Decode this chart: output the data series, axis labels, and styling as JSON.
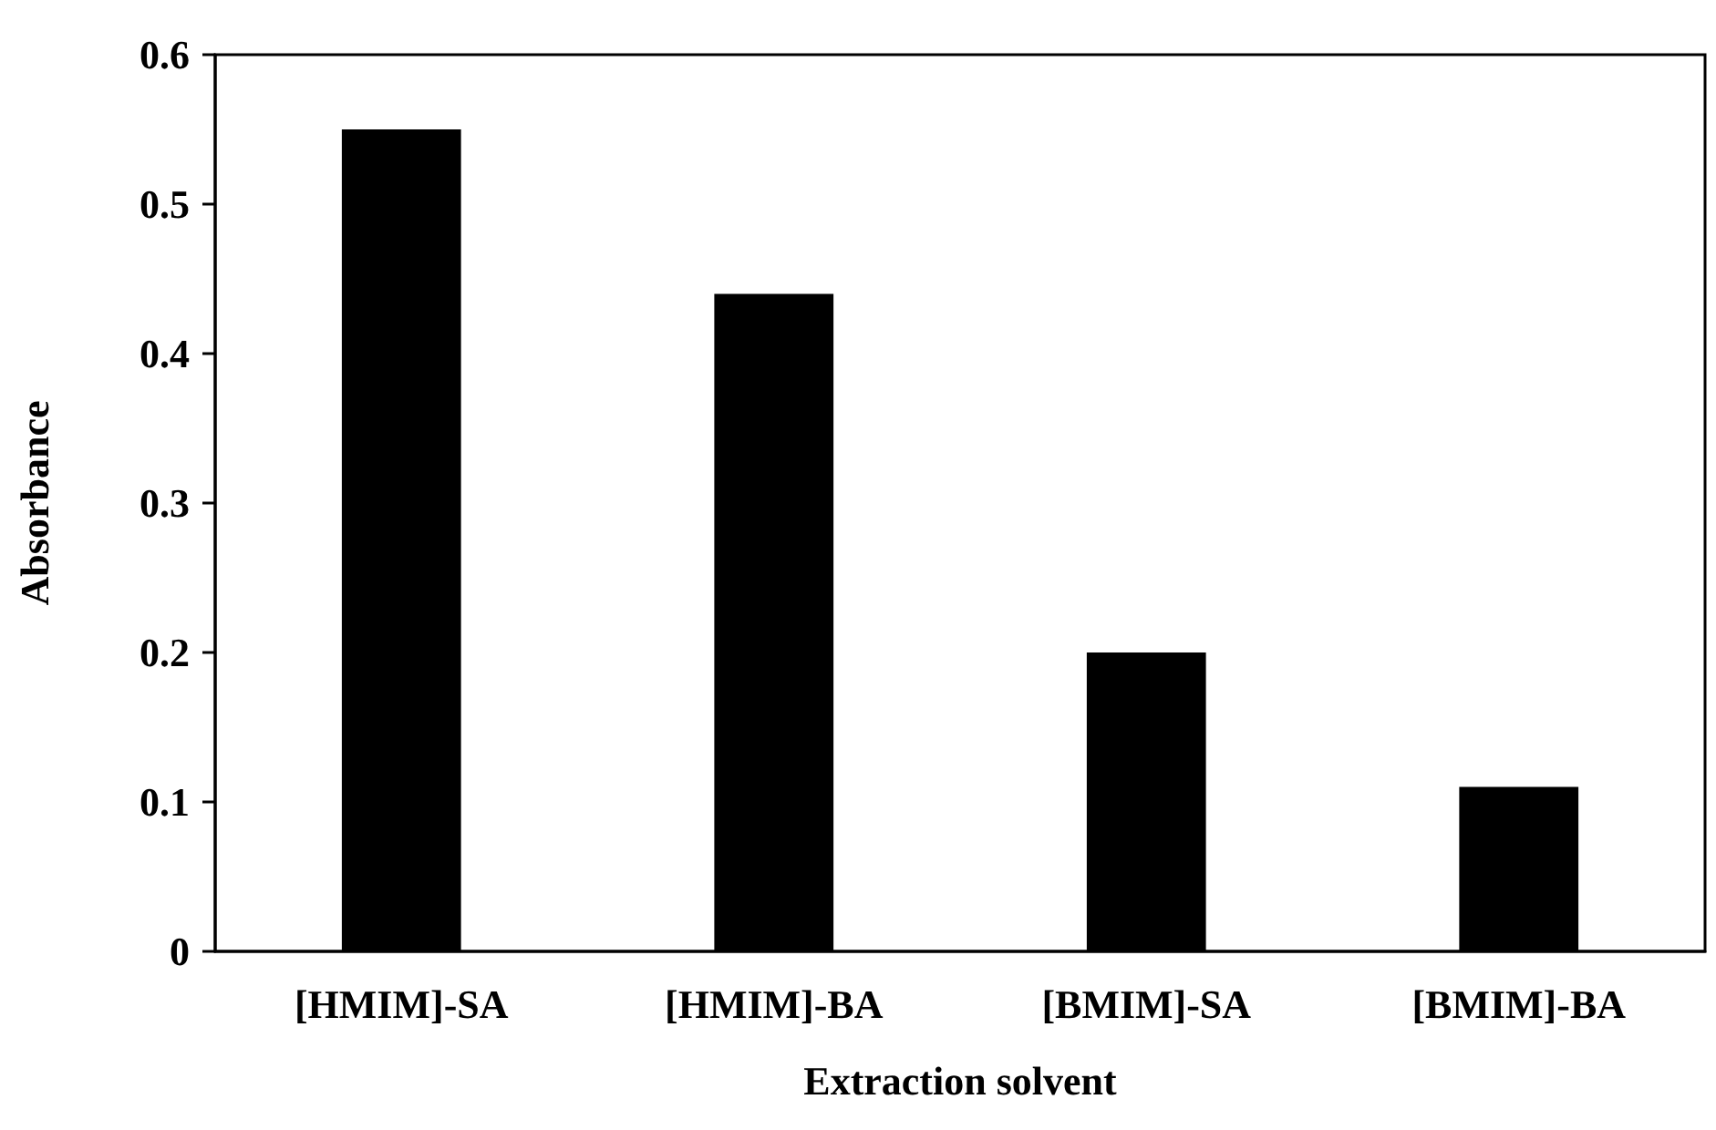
{
  "chart_data": {
    "type": "bar",
    "xlabel": "Extraction solvent",
    "ylabel": "Absorbance",
    "categories": [
      "[HMIM]-SA",
      "[HMIM]-BA",
      "[BMIM]-SA",
      "[BMIM]-BA"
    ],
    "values": [
      0.55,
      0.44,
      0.2,
      0.11
    ],
    "color": "#000000",
    "ylim": [
      0,
      0.6
    ],
    "yticks": [
      0,
      0.1,
      0.2,
      0.3,
      0.4,
      0.5,
      0.6
    ],
    "grid": false
  }
}
